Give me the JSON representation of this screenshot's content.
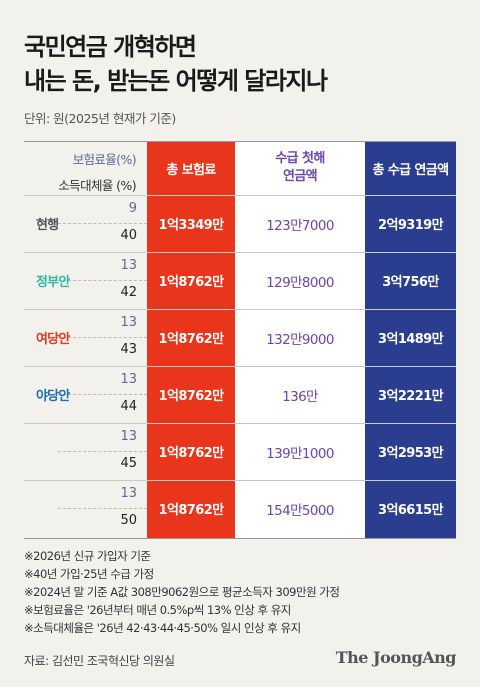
{
  "title_lines": [
    "국민연금 개혁하면",
    "내는 돈, 받는돈 어떻게 달라지나"
  ],
  "unit": "단위: 원(2025년 현재가 기준)",
  "chart_data": {
    "type": "table",
    "row_header_top": "보험료율(%)",
    "row_header_bottom": "소득대체율 (%)",
    "columns": [
      "총 보험료",
      "수급 첫해 연금액",
      "총 수급 연금액"
    ],
    "column_header_lines": [
      [
        "총 보험료"
      ],
      [
        "수급 첫해",
        "연금액"
      ],
      [
        "총 수급 연금액"
      ]
    ],
    "rows": [
      {
        "label": "현행",
        "label_color": "#555555",
        "contribution_rate": "9",
        "replacement_rate": "40",
        "total_premium": "1억3349만",
        "first_year_pension": "123만7000",
        "total_pension": "2억9319만"
      },
      {
        "label": "정부안",
        "label_color": "#2fb8a3",
        "contribution_rate": "13",
        "replacement_rate": "42",
        "total_premium": "1억8762만",
        "first_year_pension": "129만8000",
        "total_pension": "3억756만"
      },
      {
        "label": "여당안",
        "label_color": "#e03a1f",
        "contribution_rate": "13",
        "replacement_rate": "43",
        "total_premium": "1억8762만",
        "first_year_pension": "132만9000",
        "total_pension": "3억1489만"
      },
      {
        "label": "야당안",
        "label_color": "#1f6fb0",
        "contribution_rate": "13",
        "replacement_rate": "44",
        "total_premium": "1억8762만",
        "first_year_pension": "136만",
        "total_pension": "3억2221만"
      },
      {
        "label": "",
        "label_color": "#555555",
        "contribution_rate": "13",
        "replacement_rate": "45",
        "total_premium": "1억8762만",
        "first_year_pension": "139만1000",
        "total_pension": "3억2953만"
      },
      {
        "label": "",
        "label_color": "#555555",
        "contribution_rate": "13",
        "replacement_rate": "50",
        "total_premium": "1억8762만",
        "first_year_pension": "154만5000",
        "total_pension": "3억6615만"
      }
    ],
    "colors": {
      "premium_column": "#e8351b",
      "first_year_column": "#ffffff",
      "total_column": "#2b3d8f",
      "first_year_text": "#6a47a8"
    }
  },
  "notes": [
    "※2026년 신규 가입자 기준",
    "※40년 가입·25년 수급 가정",
    "※2024년 말 기준 A값 308만9062원으로 평균소득자 309만원 가정",
    "※보험료율은 '26년부터 매년 0.5%p씩 13% 인상 후 유지",
    "※소득대체율은 '26년 42·43·44·45·50% 일시 인상 후 유지"
  ],
  "source": "자료: 김선민 조국혁신당 의원실",
  "logo": "The JoongAng"
}
